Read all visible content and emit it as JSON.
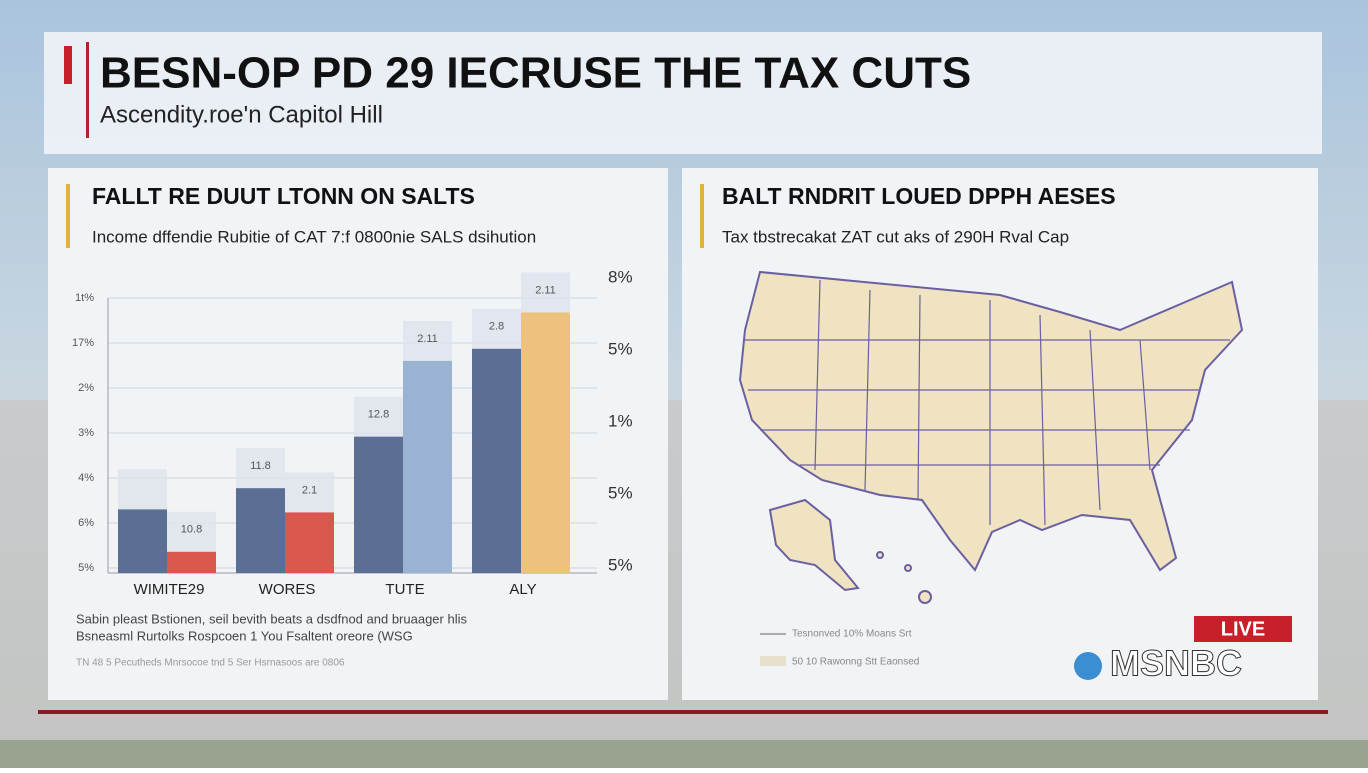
{
  "header": {
    "title": "BESN-OP PD 29 IECRUSE THE TAX CUTS",
    "subtitle": "Ascendity.roe'n Capitol Hill"
  },
  "left_panel": {
    "title": "FALLT RE DUUT LTONN ON SALTS",
    "subtitle": "Income dffendie Rubitie of CAT 7:f 0800nie SALS dsihution",
    "left_axis_labels": [
      "1t%",
      "17%",
      "2%",
      "3%",
      "4%",
      "6%",
      "5%"
    ],
    "right_axis_labels": [
      "8%",
      "5%",
      "1%",
      "5%",
      "5%"
    ],
    "bar_labels": [
      "10.8",
      "11.8",
      "2.1",
      "12.8",
      "2.11",
      "2.8",
      "2.11"
    ],
    "footnotes": [
      "Sabin pleast Bstionen, seil bevith beats a dsdfnod and bruaager hlis",
      "Bsneasml Rurtolks Rospcoen 1 You Fsaltent oreore (WSG",
      "TN 48 5 Pecutheds Mnrsocoe tnd 5 Ser Hsrnasoos are 0806"
    ]
  },
  "chart_data": {
    "type": "bar",
    "categories": [
      "WIMITE29",
      "WORES",
      "TUTE",
      "ALY"
    ],
    "series": [
      {
        "color": "#5b6f94",
        "values": [
          21,
          28,
          45,
          74
        ]
      },
      {
        "colors": [
          "#d9574c",
          "#d9574c",
          "#9ab3d3",
          "#ecc27e"
        ],
        "values": [
          7,
          20,
          70,
          86
        ]
      }
    ],
    "ylim": [
      0,
      100
    ],
    "grid": true
  },
  "right_panel": {
    "title": "BALT RNDRIT LOUED DPPH AESES",
    "subtitle": "Tax tbstrecakat ZAT cut aks of 290H Rval Cap",
    "legend": [
      "Tesnonved 10% Moans Srt",
      "50 10 Rawonng Stt Eaonsed"
    ]
  },
  "badge": {
    "live": "LIVE",
    "network": "MSNBC"
  }
}
